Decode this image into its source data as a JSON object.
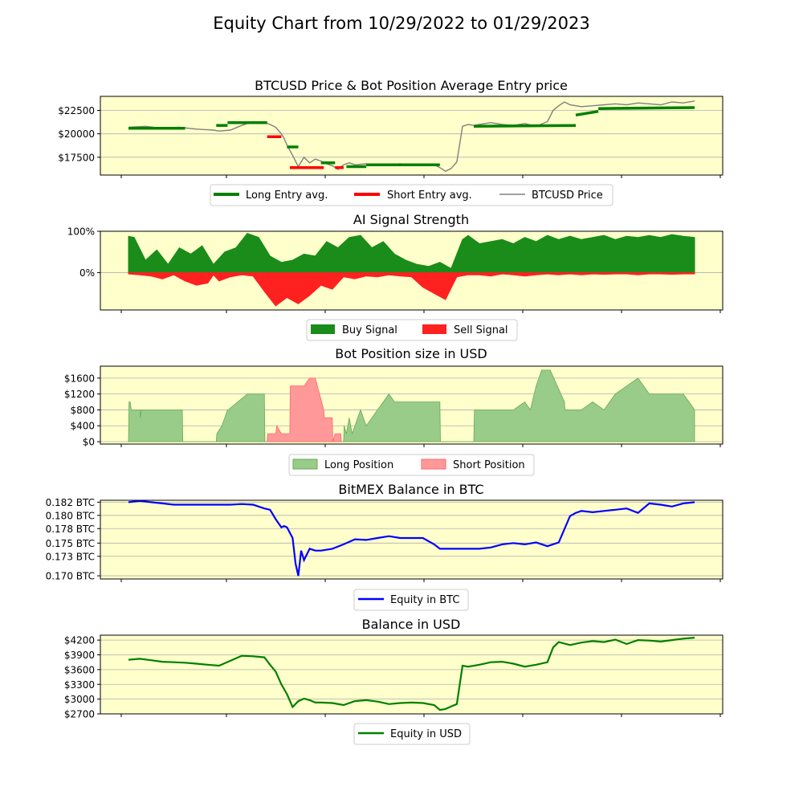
{
  "title": "Equity Chart from 10/29/2022 to 01/29/2023",
  "panels": {
    "price": {
      "title": "BTCUSD Price & Bot Position Average Entry price",
      "yticks": [
        "$22500",
        "$20000",
        "$17500"
      ],
      "legend": [
        "Long Entry avg.",
        "Short Entry avg.",
        "BTCUSD Price"
      ]
    },
    "signal": {
      "title": "AI Signal Strength",
      "yticks": [
        "100%",
        "0%"
      ],
      "legend": [
        "Buy Signal",
        "Sell Signal"
      ]
    },
    "position": {
      "title": "Bot Position size in USD",
      "yticks": [
        "$1600",
        "$1200",
        "$800",
        "$400",
        "$0"
      ],
      "legend": [
        "Long Position",
        "Short Position"
      ]
    },
    "btc": {
      "title": "BitMEX Balance in BTC",
      "yticks": [
        "0.182 BTC",
        "0.180 BTC",
        "0.178 BTC",
        "0.175 BTC",
        "0.173 BTC",
        "0.170 BTC"
      ],
      "legend": [
        "Equity in BTC"
      ]
    },
    "usd": {
      "title": "Balance in USD",
      "yticks": [
        "$4200",
        "$3900",
        "$3600",
        "$3300",
        "$3000",
        "$2700"
      ],
      "legend": [
        "Equity in USD"
      ]
    }
  },
  "colors": {
    "long": "#008000",
    "short": "#ff0000",
    "price": "#808080",
    "buy_fill": "#1a8c1a",
    "sell_fill": "#ff2020",
    "long_pos": "#99cc88",
    "short_pos": "#ff9999",
    "btc_line": "#0000ff",
    "usd_line": "#008000",
    "plot_bg": "#ffffcc"
  },
  "chart_data": [
    {
      "type": "line",
      "title": "BTCUSD Price & Bot Position Average Entry price",
      "x_range": [
        0,
        1
      ],
      "ylim": [
        15600,
        24000
      ],
      "series": [
        {
          "name": "BTCUSD Price",
          "x": [
            0,
            0.03,
            0.06,
            0.09,
            0.12,
            0.15,
            0.16,
            0.18,
            0.2,
            0.22,
            0.24,
            0.25,
            0.26,
            0.27,
            0.275,
            0.28,
            0.29,
            0.3,
            0.31,
            0.32,
            0.33,
            0.34,
            0.35,
            0.36,
            0.37,
            0.38,
            0.39,
            0.4,
            0.42,
            0.44,
            0.46,
            0.48,
            0.5,
            0.52,
            0.54,
            0.55,
            0.56,
            0.57,
            0.58,
            0.59,
            0.6,
            0.61,
            0.62,
            0.64,
            0.66,
            0.68,
            0.7,
            0.72,
            0.74,
            0.75,
            0.76,
            0.77,
            0.78,
            0.79,
            0.8,
            0.82,
            0.84,
            0.86,
            0.88,
            0.9,
            0.92,
            0.94,
            0.96,
            0.98,
            1.0
          ],
          "values": [
            20700,
            20800,
            20600,
            20700,
            20500,
            20400,
            20300,
            20400,
            20900,
            21300,
            21200,
            21000,
            20700,
            20000,
            19500,
            18800,
            17700,
            16500,
            17500,
            16900,
            17300,
            17100,
            16800,
            16600,
            16200,
            16700,
            16900,
            16700,
            16800,
            16600,
            16700,
            16800,
            16650,
            16600,
            16700,
            16400,
            16000,
            16300,
            17000,
            20800,
            21000,
            20900,
            21000,
            21200,
            21000,
            20900,
            21100,
            20800,
            21300,
            22500,
            23000,
            23400,
            23100,
            23000,
            22900,
            23000,
            23100,
            23200,
            23100,
            23300,
            23200,
            23100,
            23400,
            23300,
            23500
          ]
        },
        {
          "name": "Long Entry avg.",
          "segments": [
            {
              "x": [
                0,
                0.1
              ],
              "values": [
                20600,
                20600
              ]
            },
            {
              "x": [
                0.155,
                0.175
              ],
              "values": [
                20900,
                20900
              ]
            },
            {
              "x": [
                0.175,
                0.245
              ],
              "values": [
                21200,
                21200
              ]
            },
            {
              "x": [
                0.28,
                0.3
              ],
              "values": [
                18600,
                18600
              ]
            },
            {
              "x": [
                0.34,
                0.365
              ],
              "values": [
                16900,
                16900
              ]
            },
            {
              "x": [
                0.385,
                0.42
              ],
              "values": [
                16500,
                16500
              ]
            },
            {
              "x": [
                0.42,
                0.55
              ],
              "values": [
                16700,
                16700
              ]
            },
            {
              "x": [
                0.61,
                0.79
              ],
              "values": [
                20800,
                20900
              ]
            },
            {
              "x": [
                0.79,
                0.83
              ],
              "values": [
                22000,
                22400
              ]
            },
            {
              "x": [
                0.83,
                1.0
              ],
              "values": [
                22700,
                22800
              ]
            }
          ]
        },
        {
          "name": "Short Entry avg.",
          "segments": [
            {
              "x": [
                0.245,
                0.27
              ],
              "values": [
                19700,
                19700
              ]
            },
            {
              "x": [
                0.285,
                0.345
              ],
              "values": [
                16400,
                16400
              ]
            },
            {
              "x": [
                0.365,
                0.38
              ],
              "values": [
                16400,
                16400
              ]
            }
          ]
        }
      ]
    },
    {
      "type": "area",
      "title": "AI Signal Strength",
      "x_range": [
        0,
        1
      ],
      "ylim": [
        -90,
        100
      ],
      "series": [
        {
          "name": "Buy Signal",
          "x": [
            0,
            0.01,
            0.03,
            0.05,
            0.07,
            0.09,
            0.11,
            0.13,
            0.15,
            0.17,
            0.19,
            0.21,
            0.23,
            0.25,
            0.27,
            0.29,
            0.31,
            0.33,
            0.35,
            0.37,
            0.39,
            0.41,
            0.43,
            0.45,
            0.47,
            0.49,
            0.51,
            0.53,
            0.55,
            0.57,
            0.59,
            0.6,
            0.62,
            0.64,
            0.66,
            0.68,
            0.7,
            0.72,
            0.74,
            0.76,
            0.78,
            0.8,
            0.82,
            0.84,
            0.86,
            0.88,
            0.9,
            0.92,
            0.94,
            0.96,
            0.98,
            1.0
          ],
          "values": [
            88,
            85,
            30,
            55,
            20,
            60,
            45,
            65,
            20,
            50,
            60,
            95,
            85,
            40,
            25,
            30,
            45,
            40,
            75,
            60,
            85,
            90,
            60,
            75,
            45,
            30,
            20,
            15,
            25,
            10,
            80,
            90,
            70,
            75,
            80,
            70,
            85,
            75,
            90,
            80,
            88,
            80,
            85,
            90,
            80,
            88,
            85,
            90,
            85,
            92,
            88,
            85
          ]
        },
        {
          "name": "Sell Signal",
          "x": [
            0,
            0.02,
            0.04,
            0.06,
            0.08,
            0.1,
            0.12,
            0.14,
            0.15,
            0.16,
            0.18,
            0.2,
            0.22,
            0.24,
            0.26,
            0.28,
            0.3,
            0.32,
            0.34,
            0.36,
            0.38,
            0.4,
            0.42,
            0.44,
            0.46,
            0.48,
            0.5,
            0.52,
            0.54,
            0.56,
            0.58,
            0.6,
            0.62,
            0.64,
            0.66,
            0.68,
            0.7,
            0.72,
            0.74,
            0.76,
            0.78,
            0.8,
            0.82,
            0.84,
            0.86,
            0.88,
            0.9,
            0.92,
            0.94,
            0.96,
            0.98,
            1.0
          ],
          "values": [
            -3,
            -5,
            -8,
            -15,
            -5,
            -20,
            -30,
            -25,
            -5,
            -20,
            -10,
            -5,
            -8,
            -45,
            -80,
            -60,
            -75,
            -55,
            -30,
            -40,
            -10,
            -15,
            -8,
            -10,
            -5,
            -8,
            -10,
            -35,
            -50,
            -65,
            -10,
            -5,
            -5,
            -8,
            -3,
            -5,
            -8,
            -5,
            -3,
            -5,
            -3,
            -5,
            -3,
            -4,
            -3,
            -3,
            -5,
            -3,
            -3,
            -4,
            -3,
            -3
          ]
        }
      ]
    },
    {
      "type": "area",
      "title": "Bot Position size in USD",
      "x_range": [
        0,
        1
      ],
      "ylim": [
        -60,
        1900
      ],
      "series": [
        {
          "name": "Long Position",
          "x": [
            0,
            0.001,
            0.003,
            0.005,
            0.02,
            0.021,
            0.022,
            0.095,
            0.096,
            0.155,
            0.156,
            0.165,
            0.175,
            0.176,
            0.21,
            0.211,
            0.24,
            0.241,
            0.245,
            0.246,
            0.38,
            0.381,
            0.385,
            0.39,
            0.395,
            0.4,
            0.41,
            0.42,
            0.43,
            0.44,
            0.45,
            0.46,
            0.47,
            0.55,
            0.551,
            0.61,
            0.611,
            0.62,
            0.64,
            0.66,
            0.68,
            0.7,
            0.71,
            0.72,
            0.73,
            0.745,
            0.77,
            0.771,
            0.78,
            0.8,
            0.82,
            0.84,
            0.86,
            0.88,
            0.9,
            0.92,
            0.95,
            0.98,
            0.99,
            1.0
          ],
          "values": [
            0,
            1000,
            1000,
            800,
            800,
            600,
            800,
            800,
            0,
            0,
            200,
            400,
            800,
            800,
            1200,
            1200,
            1200,
            0,
            0,
            0,
            0,
            400,
            200,
            600,
            200,
            400,
            800,
            400,
            600,
            800,
            1000,
            1200,
            1000,
            1000,
            0,
            0,
            800,
            800,
            800,
            800,
            800,
            1000,
            800,
            1400,
            1800,
            1800,
            1000,
            800,
            800,
            800,
            1000,
            800,
            1200,
            1400,
            1600,
            1200,
            1200,
            1200,
            1000,
            800
          ]
        },
        {
          "name": "Short Position",
          "x": [
            0.245,
            0.246,
            0.26,
            0.262,
            0.27,
            0.285,
            0.286,
            0.31,
            0.32,
            0.33,
            0.345,
            0.346,
            0.36,
            0.361,
            0.365,
            0.366,
            0.375,
            0.376
          ],
          "values": [
            0,
            200,
            200,
            400,
            200,
            200,
            1400,
            1400,
            1600,
            1600,
            800,
            600,
            600,
            0,
            200,
            200,
            200,
            0
          ]
        }
      ]
    },
    {
      "type": "line",
      "title": "BitMEX Balance in BTC",
      "x_range": [
        0,
        1
      ],
      "ylim": [
        0.17,
        0.1825
      ],
      "series": [
        {
          "name": "Equity in BTC",
          "x": [
            0,
            0.02,
            0.04,
            0.06,
            0.08,
            0.1,
            0.12,
            0.14,
            0.16,
            0.18,
            0.2,
            0.22,
            0.23,
            0.24,
            0.25,
            0.26,
            0.27,
            0.275,
            0.28,
            0.29,
            0.295,
            0.3,
            0.305,
            0.31,
            0.32,
            0.33,
            0.34,
            0.36,
            0.38,
            0.4,
            0.42,
            0.44,
            0.46,
            0.48,
            0.5,
            0.52,
            0.54,
            0.55,
            0.57,
            0.6,
            0.62,
            0.64,
            0.66,
            0.68,
            0.7,
            0.72,
            0.74,
            0.76,
            0.78,
            0.79,
            0.8,
            0.82,
            0.84,
            0.86,
            0.88,
            0.9,
            0.92,
            0.94,
            0.96,
            0.98,
            1.0
          ],
          "values": [
            0.1822,
            0.1824,
            0.1822,
            0.182,
            0.1818,
            0.1818,
            0.1818,
            0.1818,
            0.1818,
            0.1818,
            0.1819,
            0.1818,
            0.1815,
            0.1812,
            0.181,
            0.1795,
            0.1782,
            0.1784,
            0.1782,
            0.1765,
            0.1725,
            0.1705,
            0.1745,
            0.173,
            0.1748,
            0.1745,
            0.1745,
            0.1748,
            0.1755,
            0.1763,
            0.1762,
            0.1765,
            0.1768,
            0.1765,
            0.1765,
            0.1765,
            0.1755,
            0.1748,
            0.1748,
            0.1748,
            0.1748,
            0.175,
            0.1755,
            0.1757,
            0.1755,
            0.1758,
            0.1752,
            0.1758,
            0.18,
            0.1805,
            0.1808,
            0.1806,
            0.1808,
            0.181,
            0.1812,
            0.1805,
            0.182,
            0.1818,
            0.1815,
            0.182,
            0.1822
          ]
        }
      ]
    },
    {
      "type": "line",
      "title": "Balance in USD",
      "x_range": [
        0,
        1
      ],
      "ylim": [
        2700,
        4300
      ],
      "series": [
        {
          "name": "Equity in USD",
          "x": [
            0,
            0.02,
            0.04,
            0.06,
            0.08,
            0.1,
            0.12,
            0.14,
            0.16,
            0.18,
            0.2,
            0.22,
            0.24,
            0.25,
            0.26,
            0.27,
            0.28,
            0.29,
            0.3,
            0.31,
            0.32,
            0.33,
            0.34,
            0.36,
            0.38,
            0.4,
            0.42,
            0.44,
            0.46,
            0.48,
            0.5,
            0.52,
            0.54,
            0.55,
            0.56,
            0.57,
            0.58,
            0.59,
            0.6,
            0.62,
            0.64,
            0.66,
            0.68,
            0.7,
            0.72,
            0.74,
            0.75,
            0.76,
            0.78,
            0.8,
            0.82,
            0.84,
            0.86,
            0.88,
            0.9,
            0.92,
            0.94,
            0.96,
            0.98,
            1.0
          ],
          "values": [
            3800,
            3820,
            3790,
            3760,
            3750,
            3740,
            3720,
            3700,
            3680,
            3780,
            3880,
            3870,
            3850,
            3700,
            3560,
            3300,
            3100,
            2840,
            2960,
            3010,
            2980,
            2930,
            2930,
            2920,
            2880,
            2960,
            2980,
            2950,
            2900,
            2920,
            2930,
            2920,
            2880,
            2780,
            2800,
            2850,
            2900,
            3680,
            3660,
            3700,
            3750,
            3760,
            3720,
            3660,
            3700,
            3750,
            4050,
            4160,
            4100,
            4150,
            4180,
            4160,
            4210,
            4120,
            4200,
            4190,
            4170,
            4200,
            4230,
            4250
          ]
        }
      ]
    }
  ]
}
